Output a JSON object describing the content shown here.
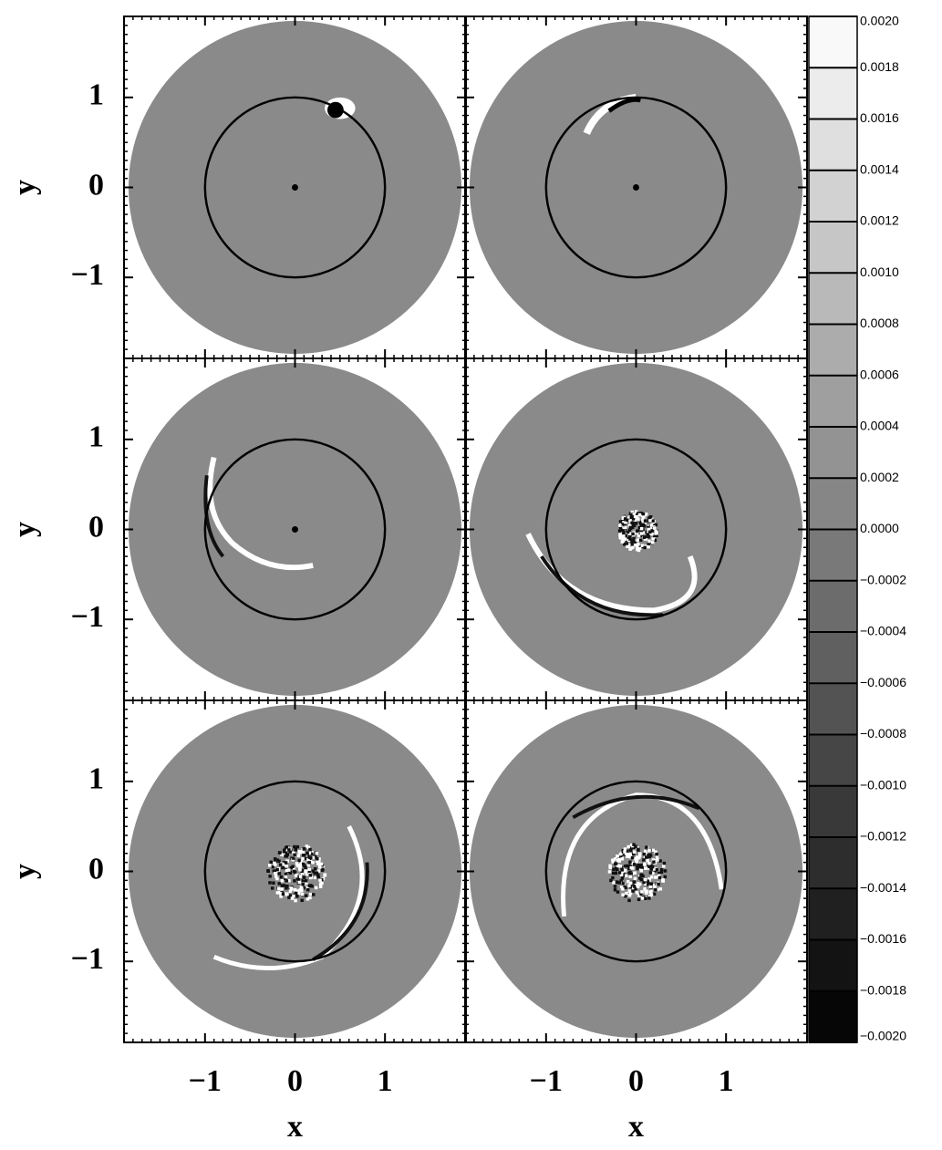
{
  "chart_data": [
    {
      "type": "image",
      "xlim": [
        -1.9,
        1.9
      ],
      "ylim": [
        -1.9,
        1.9
      ],
      "xticks": [
        {
          "value": -1,
          "label": "−1"
        },
        0,
        1
      ],
      "yticks": [
        {
          "value": -1,
          "label": "−1"
        },
        0,
        1
      ],
      "ylabel": "y"
    },
    {
      "type": "image",
      "xlim": [
        -1.9,
        1.9
      ],
      "ylim": [
        -1.9,
        1.9
      ],
      "xticks": [
        {
          "value": -1,
          "label": "−1"
        },
        0,
        1
      ],
      "yticks": [
        {
          "value": -1,
          "label": "−1"
        },
        0,
        1
      ]
    },
    {
      "type": "image",
      "xlim": [
        -1.9,
        1.9
      ],
      "ylim": [
        -1.9,
        1.9
      ],
      "xticks": [
        {
          "value": -1,
          "label": "−1"
        },
        0,
        1
      ],
      "yticks": [
        {
          "value": -1,
          "label": "−1"
        },
        0,
        1
      ],
      "ylabel": "y"
    },
    {
      "type": "image",
      "xlim": [
        -1.9,
        1.9
      ],
      "ylim": [
        -1.9,
        1.9
      ],
      "xticks": [
        {
          "value": -1,
          "label": "−1"
        },
        0,
        1
      ],
      "yticks": [
        {
          "value": -1,
          "label": "−1"
        },
        0,
        1
      ]
    },
    {
      "type": "image",
      "xlim": [
        -1.9,
        1.9
      ],
      "ylim": [
        -1.9,
        1.9
      ],
      "xticks": [
        {
          "value": -1,
          "label": "−1"
        },
        0,
        1
      ],
      "yticks": [
        {
          "value": -1,
          "label": "−1"
        },
        0,
        1
      ],
      "ylabel": "y",
      "xlabel": "x"
    },
    {
      "type": "image",
      "xlim": [
        -1.9,
        1.9
      ],
      "ylim": [
        -1.9,
        1.9
      ],
      "xticks": [
        {
          "value": -1,
          "label": "−1"
        },
        0,
        1
      ],
      "yticks": [
        {
          "value": -1,
          "label": "−1"
        },
        0,
        1
      ],
      "xlabel": "x"
    },
    {
      "type": "colorbar",
      "ylim": [
        -0.002,
        0.002
      ],
      "yticks": [
        {
          "value": 0.002,
          "label": "0.0020"
        },
        {
          "value": 0.0018,
          "label": "0.0018"
        },
        {
          "value": 0.0016,
          "label": "0.0016"
        },
        {
          "value": 0.0014,
          "label": "0.0014"
        },
        {
          "value": 0.0012,
          "label": "0.0012"
        },
        {
          "value": 0.001,
          "label": "0.0010"
        },
        {
          "value": 0.0008,
          "label": "0.0008"
        },
        {
          "value": 0.0006,
          "label": "0.0006"
        },
        {
          "value": 0.0004,
          "label": "0.0004"
        },
        {
          "value": 0.0002,
          "label": "0.0002"
        },
        {
          "value": 0,
          "label": "0.0000"
        },
        {
          "value": -0.0002,
          "label": "−0.0002"
        },
        {
          "value": -0.0004,
          "label": "−0.0004"
        },
        {
          "value": -0.0006,
          "label": "−0.0006"
        },
        {
          "value": -0.0008,
          "label": "−0.0008"
        },
        {
          "value": -0.001,
          "label": "−0.0010"
        },
        {
          "value": -0.0012,
          "label": "−0.0012"
        },
        {
          "value": -0.0014,
          "label": "−0.0014"
        },
        {
          "value": -0.0016,
          "label": "−0.0016"
        },
        {
          "value": -0.0018,
          "label": "−0.0018"
        },
        {
          "value": -0.002,
          "label": "−0.0020"
        }
      ]
    }
  ]
}
